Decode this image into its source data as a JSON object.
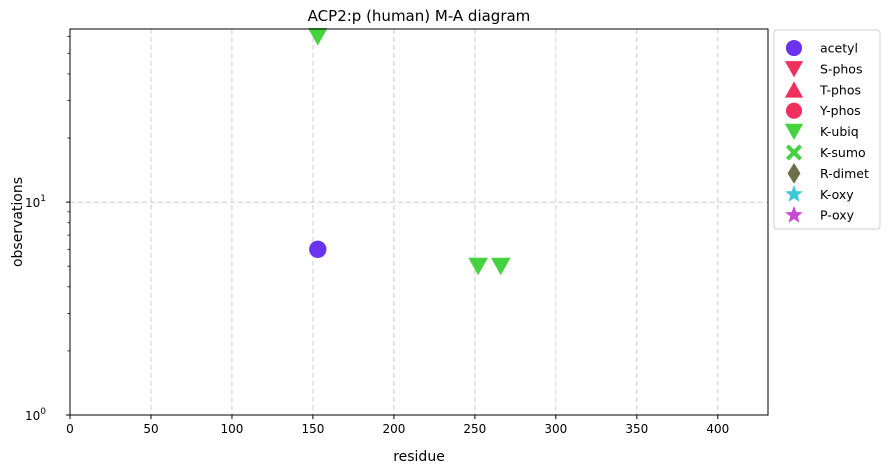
{
  "chart_data": {
    "type": "scatter",
    "title": "ACP2:p (human) M-A diagram",
    "xlabel": "residue",
    "ylabel": "observations",
    "xlim": [
      0,
      431
    ],
    "ylim": [
      1,
      65
    ],
    "yscale": "log",
    "grid": true,
    "legend_placement": "outside right, top",
    "xticks": [
      0,
      50,
      100,
      150,
      200,
      250,
      300,
      350,
      400
    ],
    "yticks": [
      {
        "value": 1,
        "base": "10",
        "exp": "0"
      },
      {
        "value": 10,
        "base": "10",
        "exp": "1"
      }
    ],
    "series": [
      {
        "name": "acetyl",
        "marker": "circle",
        "color": "#6a33f0",
        "points": [
          {
            "x": 153,
            "y": 6
          }
        ]
      },
      {
        "name": "S-phos",
        "marker": "triangle-down",
        "color": "#f0305c",
        "points": []
      },
      {
        "name": "T-phos",
        "marker": "triangle-up",
        "color": "#f0305c",
        "points": []
      },
      {
        "name": "Y-phos",
        "marker": "circle",
        "color": "#f0305c",
        "points": []
      },
      {
        "name": "K-ubiq",
        "marker": "triangle-down",
        "color": "#44d33e",
        "points": [
          {
            "x": 153,
            "y": 60
          },
          {
            "x": 252,
            "y": 5
          },
          {
            "x": 266,
            "y": 5
          }
        ]
      },
      {
        "name": "K-sumo",
        "marker": "x-filled",
        "color": "#44d33e",
        "points": []
      },
      {
        "name": "R-dimet",
        "marker": "diamond",
        "color": "#6e6e48",
        "points": []
      },
      {
        "name": "K-oxy",
        "marker": "star",
        "color": "#3ec8d8",
        "points": []
      },
      {
        "name": "P-oxy",
        "marker": "star",
        "color": "#c94ad3",
        "points": []
      }
    ]
  }
}
